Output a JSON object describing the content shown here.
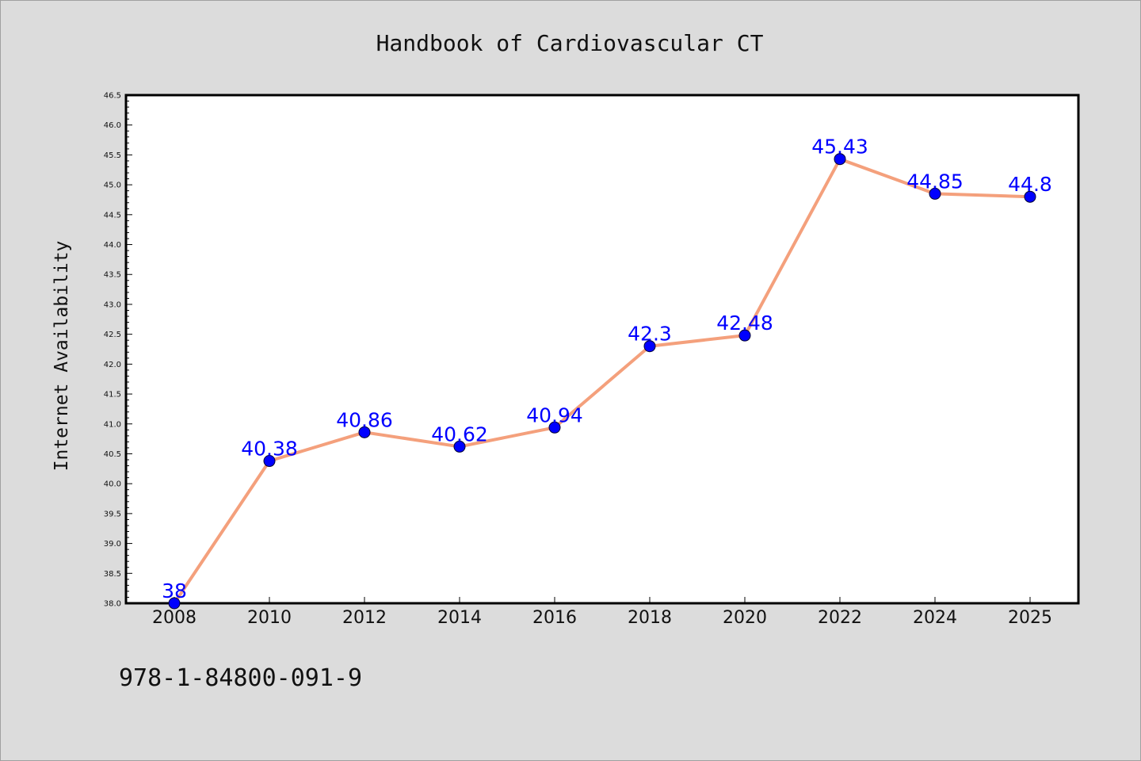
{
  "chart_data": {
    "type": "line",
    "title": "Handbook of Cardiovascular CT",
    "xlabel": "",
    "ylabel": "Internet Availability",
    "categories": [
      "2008",
      "2010",
      "2012",
      "2014",
      "2016",
      "2018",
      "2020",
      "2022",
      "2024",
      "2025"
    ],
    "values": [
      38,
      40.38,
      40.86,
      40.62,
      40.94,
      42.3,
      42.48,
      45.43,
      44.85,
      44.8
    ],
    "data_labels": [
      "38",
      "40.38",
      "40.86",
      "40.62",
      "40.94",
      "42.3",
      "42.48",
      "45.43",
      "44.85",
      "44.8"
    ],
    "ylim": [
      38.0,
      46.5
    ],
    "yticks": [
      "38.0",
      "38.5",
      "39.0",
      "39.5",
      "40.0",
      "40.5",
      "41.0",
      "41.5",
      "42.0",
      "42.5",
      "43.0",
      "43.5",
      "44.0",
      "44.5",
      "45.0",
      "45.5",
      "46.0",
      "46.5"
    ],
    "grid": false,
    "line_color": "#f4a07c",
    "marker_color": "#0000ff",
    "label_color": "#0000ff"
  },
  "footer_text": "978-1-84800-091-9"
}
